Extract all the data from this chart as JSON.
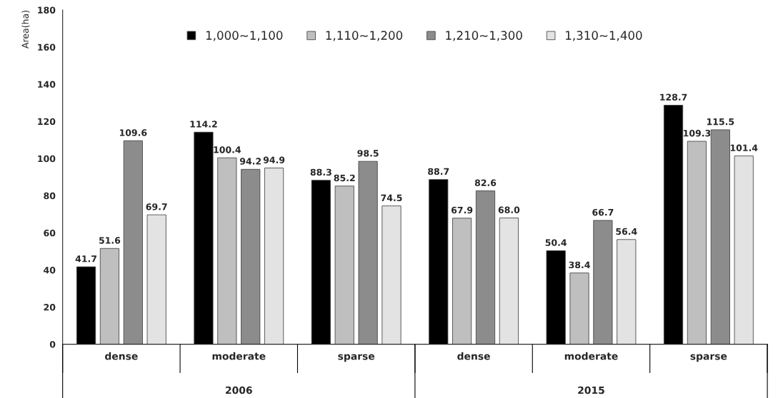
{
  "chart_data": {
    "type": "bar",
    "ylabel": "Area(ha)",
    "categories": [
      "dense",
      "moderate",
      "sparse",
      "dense",
      "moderate",
      "sparse"
    ],
    "series": [
      {
        "name": "1,000~1,100",
        "color": "#000000",
        "values": [
          41.7,
          114.2,
          88.3,
          88.7,
          50.4,
          128.7
        ],
        "value_labels": [
          "41.7",
          "114.2",
          "88.3",
          "88.7",
          "50.4",
          "128.7"
        ]
      },
      {
        "name": "1,110~1,200",
        "color": "#bfbfbf",
        "values": [
          51.6,
          100.4,
          85.2,
          67.9,
          38.4,
          109.3
        ],
        "value_labels": [
          "51.6",
          "100.4",
          "85.2",
          "67.9",
          "38.4",
          "109.3"
        ]
      },
      {
        "name": "1,210~1,300",
        "color": "#8c8c8c",
        "values": [
          109.6,
          94.2,
          98.5,
          82.6,
          66.7,
          115.5
        ],
        "value_labels": [
          "109.6",
          "94.2",
          "98.5",
          "82.6",
          "66.7",
          "115.5"
        ]
      },
      {
        "name": "1,310~1,400",
        "color": "#e3e3e3",
        "values": [
          69.7,
          94.9,
          74.5,
          68.0,
          56.4,
          101.4
        ],
        "value_labels": [
          "69.7",
          "94.9",
          "74.5",
          "68.0",
          "56.4",
          "101.4"
        ]
      }
    ],
    "annotations": [
      "2006",
      "2015"
    ],
    "ylim": [
      0,
      180
    ],
    "yticks": [
      0,
      20,
      40,
      60,
      80,
      100,
      120,
      140,
      160,
      180
    ],
    "legend": "top",
    "grid": false
  }
}
